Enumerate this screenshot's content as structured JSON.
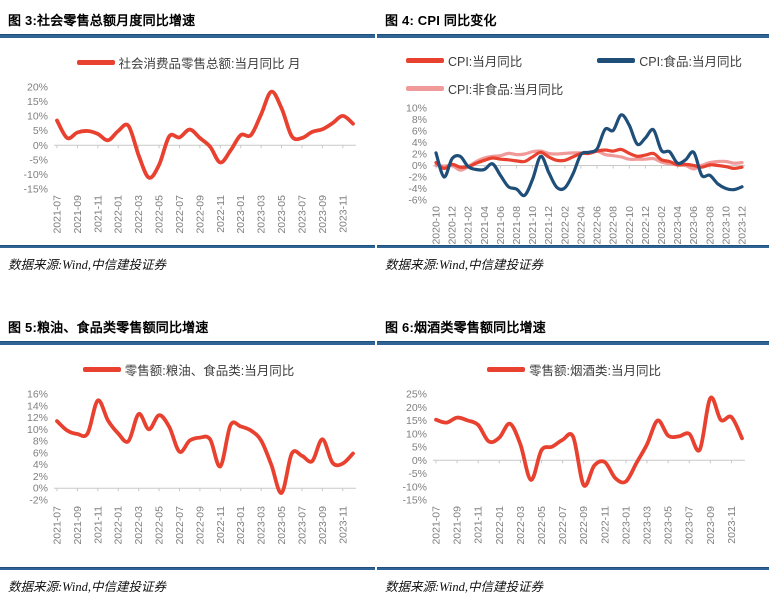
{
  "colors": {
    "rule_blue": "#2E6496",
    "red": "#E8412F",
    "dark_blue": "#1F4E79",
    "pink": "#F09B99",
    "axis_gray": "#7F7F7F",
    "zero_line": "#C8C8C8"
  },
  "panels": [
    {
      "title": "图 3:社会零售总额月度同比增速",
      "source": "数据来源:Wind,中信建投证券",
      "legend": [
        {
          "label": "社会消费品零售总额:当月同比 月",
          "color": "#E8412F"
        }
      ]
    },
    {
      "title": "图 4: CPI 同比变化",
      "source": "数据来源:Wind,中信建投证券",
      "legend": [
        {
          "label": "CPI:当月同比",
          "color": "#E8412F"
        },
        {
          "label": "CPI:食品:当月同比",
          "color": "#1F4E79"
        },
        {
          "label": "CPI:非食品:当月同比",
          "color": "#F09B99"
        }
      ]
    },
    {
      "title": "图 5:粮油、食品类零售额同比增速",
      "source": "数据来源:Wind,中信建投证券",
      "legend": [
        {
          "label": "零售额:粮油、食品类:当月同比",
          "color": "#E8412F"
        }
      ]
    },
    {
      "title": "图 6:烟酒类零售额同比增速",
      "source": "数据来源:Wind,中信建投证券",
      "legend": [
        {
          "label": "零售额:烟酒类:当月同比",
          "color": "#E8412F"
        }
      ]
    }
  ],
  "chart_data": [
    {
      "type": "line",
      "title": "社会零售总额月度同比增速",
      "ylim": [
        -15,
        20
      ],
      "ystep": 5,
      "y_unit": "%",
      "tick_every": 2,
      "grid": false,
      "legend_position": "top",
      "x": [
        "2021-07",
        "2021-08",
        "2021-09",
        "2021-10",
        "2021-11",
        "2021-12",
        "2022-01",
        "2022-02",
        "2022-03",
        "2022-04",
        "2022-05",
        "2022-06",
        "2022-07",
        "2022-08",
        "2022-09",
        "2022-10",
        "2022-11",
        "2022-12",
        "2023-01",
        "2023-02",
        "2023-03",
        "2023-04",
        "2023-05",
        "2023-06",
        "2023-07",
        "2023-08",
        "2023-09",
        "2023-10",
        "2023-11",
        "2023-12"
      ],
      "series": [
        {
          "name": "社会消费品零售总额:当月同比 月",
          "color": "#E8412F",
          "width": 3.8,
          "z": 1,
          "values": [
            8.5,
            2.5,
            4.4,
            4.9,
            3.9,
            1.7,
            4.9,
            6.7,
            -3.5,
            -11.1,
            -6.7,
            3.1,
            2.7,
            5.4,
            2.5,
            -0.5,
            -5.9,
            -1.8,
            3.5,
            3.5,
            10.6,
            18.4,
            12.7,
            3.1,
            2.5,
            4.6,
            5.5,
            7.6,
            10.1,
            7.4
          ]
        }
      ]
    },
    {
      "type": "line",
      "title": "CPI 同比变化",
      "ylim": [
        -6,
        10
      ],
      "ystep": 2,
      "y_unit": "%",
      "tick_every": 2,
      "grid": false,
      "legend_position": "top",
      "x": [
        "2020-10",
        "2020-11",
        "2020-12",
        "2021-01",
        "2021-02",
        "2021-03",
        "2021-04",
        "2021-05",
        "2021-06",
        "2021-07",
        "2021-08",
        "2021-09",
        "2021-10",
        "2021-11",
        "2021-12",
        "2022-01",
        "2022-02",
        "2022-03",
        "2022-04",
        "2022-05",
        "2022-06",
        "2022-07",
        "2022-08",
        "2022-09",
        "2022-10",
        "2022-11",
        "2022-12",
        "2023-01",
        "2023-02",
        "2023-03",
        "2023-04",
        "2023-05",
        "2023-06",
        "2023-07",
        "2023-08",
        "2023-09",
        "2023-10",
        "2023-11",
        "2023-12"
      ],
      "series": [
        {
          "name": "CPI:当月同比",
          "color": "#E8412F",
          "width": 3.2,
          "z": 2,
          "values": [
            0.5,
            -0.5,
            0.2,
            -0.3,
            -0.2,
            0.4,
            0.9,
            1.3,
            1.1,
            1.0,
            0.8,
            0.7,
            1.5,
            2.3,
            1.5,
            0.9,
            0.9,
            1.5,
            2.1,
            2.1,
            2.5,
            2.7,
            2.5,
            2.8,
            2.1,
            1.6,
            1.8,
            2.1,
            1.0,
            0.7,
            0.1,
            0.2,
            0.0,
            -0.3,
            0.1,
            0.0,
            -0.2,
            -0.5,
            -0.3
          ]
        },
        {
          "name": "CPI:食品:当月同比",
          "color": "#1F4E79",
          "width": 3.2,
          "z": 3,
          "values": [
            2.2,
            -2.0,
            1.2,
            1.6,
            -0.2,
            -0.7,
            -0.7,
            0.3,
            -1.7,
            -3.7,
            -4.1,
            -5.2,
            -2.4,
            1.6,
            -1.2,
            -3.8,
            -3.9,
            -1.5,
            1.9,
            2.3,
            2.9,
            6.3,
            6.1,
            8.8,
            7.0,
            3.7,
            4.8,
            6.2,
            2.6,
            2.4,
            0.4,
            1.0,
            2.3,
            -1.7,
            -1.7,
            -3.2,
            -4.0,
            -4.2,
            -3.7
          ]
        },
        {
          "name": "CPI:非食品:当月同比",
          "color": "#F09B99",
          "width": 3.2,
          "z": 1,
          "values": [
            0.0,
            -0.1,
            0.0,
            -0.8,
            -0.2,
            0.7,
            1.3,
            1.6,
            1.7,
            2.1,
            1.9,
            2.0,
            2.4,
            2.5,
            2.1,
            2.0,
            2.1,
            2.2,
            2.2,
            2.1,
            2.5,
            1.9,
            1.7,
            1.5,
            1.1,
            1.1,
            1.1,
            1.2,
            0.6,
            0.3,
            0.1,
            0.0,
            -0.6,
            0.0,
            0.5,
            0.7,
            0.7,
            0.4,
            0.5
          ]
        }
      ]
    },
    {
      "type": "line",
      "title": "粮油、食品类零售额同比增速",
      "ylim": [
        -2,
        16
      ],
      "ystep": 2,
      "y_unit": "%",
      "tick_every": 2,
      "grid": false,
      "legend_position": "top",
      "x": [
        "2021-07",
        "2021-08",
        "2021-09",
        "2021-10",
        "2021-11",
        "2021-12",
        "2022-01",
        "2022-02",
        "2022-03",
        "2022-04",
        "2022-05",
        "2022-06",
        "2022-07",
        "2022-08",
        "2022-09",
        "2022-10",
        "2022-11",
        "2022-12",
        "2023-01",
        "2023-02",
        "2023-03",
        "2023-04",
        "2023-05",
        "2023-06",
        "2023-07",
        "2023-08",
        "2023-09",
        "2023-10",
        "2023-11",
        "2023-12"
      ],
      "series": [
        {
          "name": "零售额:粮油、食品类:当月同比",
          "color": "#E8412F",
          "width": 3.8,
          "z": 1,
          "values": [
            11.4,
            9.8,
            9.2,
            9.3,
            14.9,
            11.5,
            9.3,
            8.0,
            12.6,
            10.0,
            12.4,
            10.4,
            6.2,
            8.1,
            8.6,
            8.3,
            3.7,
            10.7,
            10.5,
            9.8,
            8.1,
            4.0,
            -0.8,
            5.9,
            5.5,
            4.6,
            8.3,
            4.3,
            4.2,
            5.9
          ]
        }
      ]
    },
    {
      "type": "line",
      "title": "烟酒类零售额同比增速",
      "ylim": [
        -15,
        25
      ],
      "ystep": 5,
      "y_unit": "%",
      "tick_every": 2,
      "grid": false,
      "legend_position": "top",
      "x": [
        "2021-07",
        "2021-08",
        "2021-09",
        "2021-10",
        "2021-11",
        "2021-12",
        "2022-01",
        "2022-02",
        "2022-03",
        "2022-04",
        "2022-05",
        "2022-06",
        "2022-07",
        "2022-08",
        "2022-09",
        "2022-10",
        "2022-11",
        "2022-12",
        "2023-01",
        "2023-02",
        "2023-03",
        "2023-04",
        "2023-05",
        "2023-06",
        "2023-07",
        "2023-08",
        "2023-09",
        "2023-10",
        "2023-11",
        "2023-12"
      ],
      "series": [
        {
          "name": "零售额:烟酒类:当月同比",
          "color": "#E8412F",
          "width": 3.8,
          "z": 1,
          "values": [
            15.3,
            14.2,
            16.1,
            15.0,
            13.3,
            7.1,
            8.5,
            13.8,
            6.0,
            -7.4,
            3.8,
            5.1,
            7.7,
            8.8,
            -9.4,
            -2.0,
            -0.7,
            -6.8,
            -8.0,
            -1.0,
            6.0,
            15.0,
            9.3,
            9.0,
            10.0,
            4.0,
            23.4,
            15.2,
            16.3,
            8.3
          ]
        }
      ]
    }
  ]
}
